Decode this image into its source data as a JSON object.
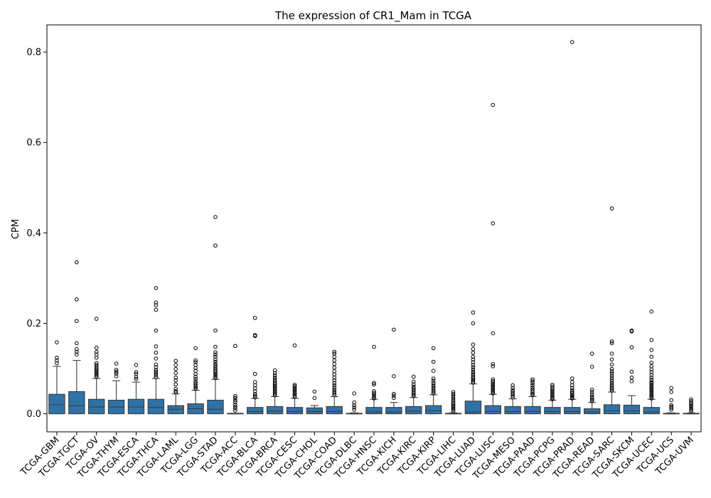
{
  "chart_data": {
    "type": "box",
    "title": "The expression of CR1_Mam in TCGA",
    "xlabel": "",
    "ylabel": "CPM",
    "ylim": [
      -0.04,
      0.86
    ],
    "yticks": [
      0.0,
      0.2,
      0.4,
      0.6,
      0.8
    ],
    "ytick_labels": [
      "0.0",
      "0.2",
      "0.4",
      "0.6",
      "0.8"
    ],
    "grid": false,
    "box_color": "#2f72a8",
    "categories": [
      "TCGA-GBM",
      "TCGA-TGCT",
      "TCGA-OV",
      "TCGA-THYM",
      "TCGA-ESCA",
      "TCGA-THCA",
      "TCGA-LAML",
      "TCGA-LGG",
      "TCGA-STAD",
      "TCGA-ACC",
      "TCGA-BLCA",
      "TCGA-BRCA",
      "TCGA-CESC",
      "TCGA-CHOL",
      "TCGA-COAD",
      "TCGA-DLBC",
      "TCGA-HNSC",
      "TCGA-KICH",
      "TCGA-KIRC",
      "TCGA-KIRP",
      "TCGA-LIHC",
      "TCGA-LUAD",
      "TCGA-LUSC",
      "TCGA-MESO",
      "TCGA-PAAD",
      "TCGA-PCPG",
      "TCGA-PRAD",
      "TCGA-READ",
      "TCGA-SARC",
      "TCGA-SKCM",
      "TCGA-UCEC",
      "TCGA-UCS",
      "TCGA-UVM"
    ],
    "boxes": [
      {
        "whislo": 0.0,
        "q1": 0.0,
        "med": 0.02,
        "q3": 0.043,
        "whishi": 0.105,
        "fliers": [
          0.112,
          0.118,
          0.124,
          0.158
        ]
      },
      {
        "whislo": 0.0,
        "q1": 0.0,
        "med": 0.018,
        "q3": 0.049,
        "whishi": 0.118,
        "fliers": [
          0.131,
          0.137,
          0.143,
          0.156,
          0.205,
          0.253,
          0.335
        ]
      },
      {
        "whislo": 0.0,
        "q1": 0.0,
        "med": 0.015,
        "q3": 0.032,
        "whishi": 0.078,
        "fliers": [
          0.082,
          0.085,
          0.088,
          0.091,
          0.094,
          0.097,
          0.1,
          0.104,
          0.108,
          0.112,
          0.124,
          0.131,
          0.137,
          0.146,
          0.21
        ]
      },
      {
        "whislo": 0.0,
        "q1": 0.0,
        "med": 0.015,
        "q3": 0.03,
        "whishi": 0.073,
        "fliers": [
          0.083,
          0.089,
          0.093,
          0.097,
          0.111
        ]
      },
      {
        "whislo": 0.0,
        "q1": 0.0,
        "med": 0.015,
        "q3": 0.032,
        "whishi": 0.07,
        "fliers": [
          0.077,
          0.081,
          0.088,
          0.092,
          0.108
        ]
      },
      {
        "whislo": 0.0,
        "q1": 0.0,
        "med": 0.014,
        "q3": 0.032,
        "whishi": 0.078,
        "fliers": [
          0.081,
          0.085,
          0.089,
          0.093,
          0.097,
          0.103,
          0.109,
          0.122,
          0.135,
          0.149,
          0.184,
          0.23,
          0.24,
          0.246,
          0.278
        ]
      },
      {
        "whislo": 0.0,
        "q1": 0.0,
        "med": 0.01,
        "q3": 0.018,
        "whishi": 0.044,
        "fliers": [
          0.047,
          0.05,
          0.055,
          0.065,
          0.074,
          0.08,
          0.09,
          0.099,
          0.108,
          0.117
        ]
      },
      {
        "whislo": 0.0,
        "q1": 0.0,
        "med": 0.011,
        "q3": 0.022,
        "whishi": 0.052,
        "fliers": [
          0.055,
          0.058,
          0.061,
          0.064,
          0.068,
          0.072,
          0.077,
          0.082,
          0.088,
          0.095,
          0.101,
          0.108,
          0.114,
          0.118,
          0.145
        ]
      },
      {
        "whislo": 0.0,
        "q1": 0.0,
        "med": 0.01,
        "q3": 0.03,
        "whishi": 0.076,
        "fliers": [
          0.079,
          0.082,
          0.085,
          0.088,
          0.091,
          0.094,
          0.098,
          0.102,
          0.106,
          0.11,
          0.115,
          0.12,
          0.126,
          0.131,
          0.136,
          0.148,
          0.184,
          0.372,
          0.435
        ]
      },
      {
        "whislo": 0.0,
        "q1": 0.0,
        "med": 0.0,
        "q3": 0.001,
        "whishi": 0.001,
        "fliers": [
          0.007,
          0.012,
          0.016,
          0.02,
          0.026,
          0.03,
          0.035,
          0.039,
          0.15
        ]
      },
      {
        "whislo": 0.0,
        "q1": 0.0,
        "med": 0.005,
        "q3": 0.014,
        "whishi": 0.034,
        "fliers": [
          0.036,
          0.04,
          0.044,
          0.05,
          0.056,
          0.063,
          0.07,
          0.088,
          0.172,
          0.174,
          0.212
        ]
      },
      {
        "whislo": 0.0,
        "q1": 0.0,
        "med": 0.006,
        "q3": 0.016,
        "whishi": 0.038,
        "fliers": [
          0.041,
          0.044,
          0.047,
          0.05,
          0.053,
          0.056,
          0.059,
          0.062,
          0.065,
          0.068,
          0.072,
          0.076,
          0.08,
          0.085,
          0.09,
          0.096
        ]
      },
      {
        "whislo": 0.0,
        "q1": 0.0,
        "med": 0.005,
        "q3": 0.014,
        "whishi": 0.034,
        "fliers": [
          0.037,
          0.04,
          0.043,
          0.046,
          0.049,
          0.052,
          0.055,
          0.058,
          0.061,
          0.064,
          0.151
        ]
      },
      {
        "whislo": 0.0,
        "q1": 0.0,
        "med": 0.005,
        "q3": 0.013,
        "whishi": 0.018,
        "fliers": [
          0.035,
          0.049
        ]
      },
      {
        "whislo": 0.0,
        "q1": 0.0,
        "med": 0.005,
        "q3": 0.016,
        "whishi": 0.038,
        "fliers": [
          0.041,
          0.045,
          0.049,
          0.053,
          0.058,
          0.063,
          0.068,
          0.074,
          0.08,
          0.087,
          0.094,
          0.102,
          0.11,
          0.118,
          0.126,
          0.133,
          0.137
        ]
      },
      {
        "whislo": 0.0,
        "q1": 0.0,
        "med": 0.0,
        "q3": 0.001,
        "whishi": 0.002,
        "fliers": [
          0.009,
          0.014,
          0.019,
          0.025,
          0.045
        ]
      },
      {
        "whislo": 0.0,
        "q1": 0.0,
        "med": 0.004,
        "q3": 0.014,
        "whishi": 0.032,
        "fliers": [
          0.034,
          0.037,
          0.04,
          0.043,
          0.046,
          0.05,
          0.065,
          0.068,
          0.148
        ]
      },
      {
        "whislo": 0.0,
        "q1": 0.0,
        "med": 0.004,
        "q3": 0.014,
        "whishi": 0.025,
        "fliers": [
          0.035,
          0.04,
          0.044,
          0.083,
          0.186
        ]
      },
      {
        "whislo": 0.0,
        "q1": 0.0,
        "med": 0.006,
        "q3": 0.016,
        "whishi": 0.036,
        "fliers": [
          0.039,
          0.042,
          0.045,
          0.048,
          0.052,
          0.056,
          0.06,
          0.065,
          0.071,
          0.082
        ]
      },
      {
        "whislo": 0.0,
        "q1": 0.0,
        "med": 0.007,
        "q3": 0.018,
        "whishi": 0.042,
        "fliers": [
          0.045,
          0.048,
          0.051,
          0.055,
          0.059,
          0.063,
          0.068,
          0.073,
          0.078,
          0.095,
          0.115,
          0.145
        ]
      },
      {
        "whislo": 0.0,
        "q1": 0.0,
        "med": 0.0,
        "q3": 0.001,
        "whishi": 0.002,
        "fliers": [
          0.006,
          0.009,
          0.012,
          0.015,
          0.018,
          0.021,
          0.024,
          0.028,
          0.032,
          0.036,
          0.04,
          0.044,
          0.048
        ]
      },
      {
        "whislo": 0.0,
        "q1": 0.0,
        "med": 0.004,
        "q3": 0.028,
        "whishi": 0.066,
        "fliers": [
          0.069,
          0.072,
          0.075,
          0.078,
          0.081,
          0.085,
          0.089,
          0.093,
          0.098,
          0.103,
          0.108,
          0.114,
          0.12,
          0.126,
          0.135,
          0.143,
          0.153,
          0.2,
          0.224
        ]
      },
      {
        "whislo": 0.0,
        "q1": 0.0,
        "med": 0.005,
        "q3": 0.018,
        "whishi": 0.043,
        "fliers": [
          0.045,
          0.048,
          0.051,
          0.054,
          0.057,
          0.06,
          0.063,
          0.066,
          0.069,
          0.072,
          0.076,
          0.105,
          0.11,
          0.178,
          0.421,
          0.683
        ]
      },
      {
        "whislo": 0.0,
        "q1": 0.0,
        "med": 0.005,
        "q3": 0.016,
        "whishi": 0.033,
        "fliers": [
          0.036,
          0.04,
          0.044,
          0.048,
          0.052,
          0.057,
          0.063
        ]
      },
      {
        "whislo": 0.0,
        "q1": 0.0,
        "med": 0.005,
        "q3": 0.016,
        "whishi": 0.038,
        "fliers": [
          0.041,
          0.044,
          0.047,
          0.05,
          0.054,
          0.058,
          0.063,
          0.068,
          0.072,
          0.076
        ]
      },
      {
        "whislo": 0.0,
        "q1": 0.0,
        "med": 0.005,
        "q3": 0.014,
        "whishi": 0.03,
        "fliers": [
          0.032,
          0.035,
          0.038,
          0.041,
          0.044,
          0.047,
          0.05,
          0.053,
          0.056,
          0.06,
          0.064
        ]
      },
      {
        "whislo": 0.0,
        "q1": 0.0,
        "med": 0.005,
        "q3": 0.014,
        "whishi": 0.032,
        "fliers": [
          0.034,
          0.036,
          0.039,
          0.042,
          0.045,
          0.048,
          0.052,
          0.057,
          0.063,
          0.07,
          0.078,
          0.822
        ]
      },
      {
        "whislo": 0.0,
        "q1": 0.0,
        "med": 0.004,
        "q3": 0.011,
        "whishi": 0.025,
        "fliers": [
          0.028,
          0.031,
          0.034,
          0.038,
          0.043,
          0.048,
          0.053,
          0.104,
          0.133
        ]
      },
      {
        "whislo": 0.0,
        "q1": 0.0,
        "med": 0.007,
        "q3": 0.02,
        "whishi": 0.048,
        "fliers": [
          0.051,
          0.054,
          0.057,
          0.061,
          0.065,
          0.069,
          0.074,
          0.079,
          0.084,
          0.089,
          0.094,
          0.099,
          0.109,
          0.12,
          0.133,
          0.156,
          0.16,
          0.454
        ]
      },
      {
        "whislo": 0.0,
        "q1": 0.0,
        "med": 0.006,
        "q3": 0.019,
        "whishi": 0.04,
        "fliers": [
          0.072,
          0.08,
          0.093,
          0.147,
          0.182,
          0.184
        ]
      },
      {
        "whislo": 0.0,
        "q1": 0.0,
        "med": 0.004,
        "q3": 0.014,
        "whishi": 0.032,
        "fliers": [
          0.034,
          0.037,
          0.04,
          0.043,
          0.046,
          0.049,
          0.052,
          0.055,
          0.058,
          0.061,
          0.064,
          0.067,
          0.07,
          0.075,
          0.08,
          0.086,
          0.092,
          0.098,
          0.105,
          0.113,
          0.126,
          0.141,
          0.163,
          0.226
        ]
      },
      {
        "whislo": 0.0,
        "q1": 0.0,
        "med": 0.0,
        "q3": 0.001,
        "whishi": 0.002,
        "fliers": [
          0.009,
          0.013,
          0.016,
          0.019,
          0.03,
          0.048,
          0.057
        ]
      },
      {
        "whislo": 0.0,
        "q1": 0.0,
        "med": 0.0,
        "q3": 0.001,
        "whishi": 0.002,
        "fliers": [
          0.006,
          0.009,
          0.012,
          0.015,
          0.018,
          0.021,
          0.024,
          0.028,
          0.032
        ]
      }
    ]
  }
}
